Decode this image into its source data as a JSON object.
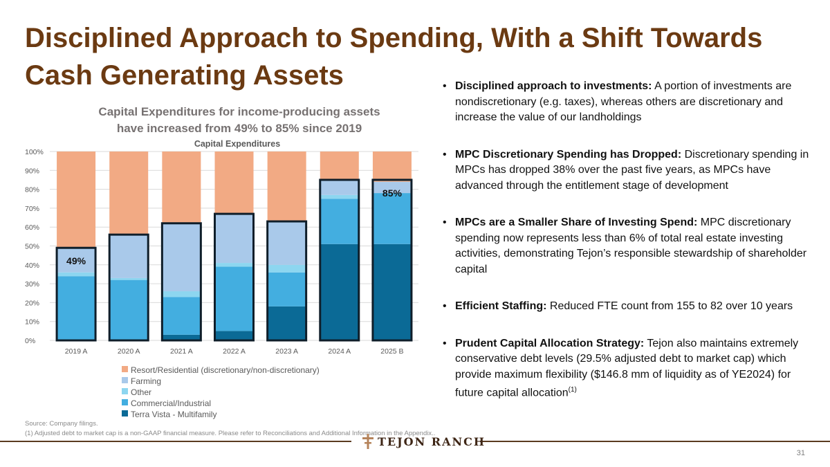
{
  "slide": {
    "title_line1": "Disciplined Approach to Spending, With a Shift Towards",
    "title_line2": "Cash Generating Assets",
    "chart_heading_line1": "Capital Expenditures for income-producing assets",
    "chart_heading_line2": "have increased from 49% to 85% since 2019",
    "bullets": [
      {
        "bold": "Disciplined approach to investments:",
        "text": " A portion of investments are nondiscretionary (e.g. taxes), whereas others are discretionary and increase the value of our landholdings"
      },
      {
        "bold": "MPC Discretionary Spending has Dropped:",
        "text": " Discretionary spending in MPCs has dropped 38% over the past five years, as MPCs have advanced through the entitlement stage of development"
      },
      {
        "bold": "MPCs are a Smaller Share of Investing Spend:",
        "text": " MPC discretionary spending now represents less than 6% of total real estate investing activities, demonstrating Tejon’s responsible stewardship of shareholder capital"
      },
      {
        "bold": "Efficient Staffing:",
        "text": " Reduced FTE count from 155 to 82 over 10 years"
      },
      {
        "bold": "Prudent Capital Allocation Strategy:",
        "text": " Tejon also maintains extremely conservative debt levels (29.5% adjusted debt to market cap) which provide maximum flexibility ($146.8 mm of liquidity as of YE2024) for future capital allocation",
        "sup": "(1)"
      }
    ],
    "source_line1": "Source: Company filings.",
    "source_line2": "(1) Adjusted debt to market cap is a non-GAAP financial measure. Please refer to Reconciliations and Additional Information in the Appendix..",
    "logo_text": "TEJON RANCH",
    "page_number": "31",
    "colors": {
      "title": "#6b3a12",
      "footer_line": "#5a3a20"
    }
  },
  "chart_data": {
    "type": "bar",
    "stacked": true,
    "title": "Capital Expenditures",
    "categories": [
      "2019 A",
      "2020 A",
      "2021 A",
      "2022 A",
      "2023 A",
      "2024 A",
      "2025 B"
    ],
    "ylim": [
      0,
      100
    ],
    "yticks": [
      "0%",
      "10%",
      "20%",
      "30%",
      "40%",
      "50%",
      "60%",
      "70%",
      "80%",
      "90%",
      "100%"
    ],
    "grid": true,
    "legend_position": "bottom-left",
    "series": [
      {
        "name": "Terra Vista - Multifamily",
        "color": "#0b6a96",
        "values": [
          0,
          0,
          3,
          5,
          18,
          51,
          51
        ]
      },
      {
        "name": "Commercial/Industrial",
        "color": "#43aee0",
        "values": [
          34,
          32,
          20,
          34,
          18,
          24,
          27
        ]
      },
      {
        "name": "Other",
        "color": "#8dd6f0",
        "values": [
          2,
          1,
          3,
          2,
          4,
          2,
          0
        ]
      },
      {
        "name": "Farming",
        "color": "#a9c9ea",
        "values": [
          13,
          23,
          36,
          26,
          23,
          8,
          6
        ]
      },
      {
        "name": "Resort/Residential (discretionary/non-discretionary)",
        "color": "#f2aa84",
        "values": [
          51,
          44,
          38,
          33,
          37,
          15,
          16
        ]
      }
    ],
    "outlined_totals": [
      49,
      56,
      62,
      67,
      63,
      85,
      85
    ],
    "annotations": [
      {
        "category": "2019 A",
        "text": "49%"
      },
      {
        "category": "2025 B",
        "text": "85%"
      }
    ]
  }
}
